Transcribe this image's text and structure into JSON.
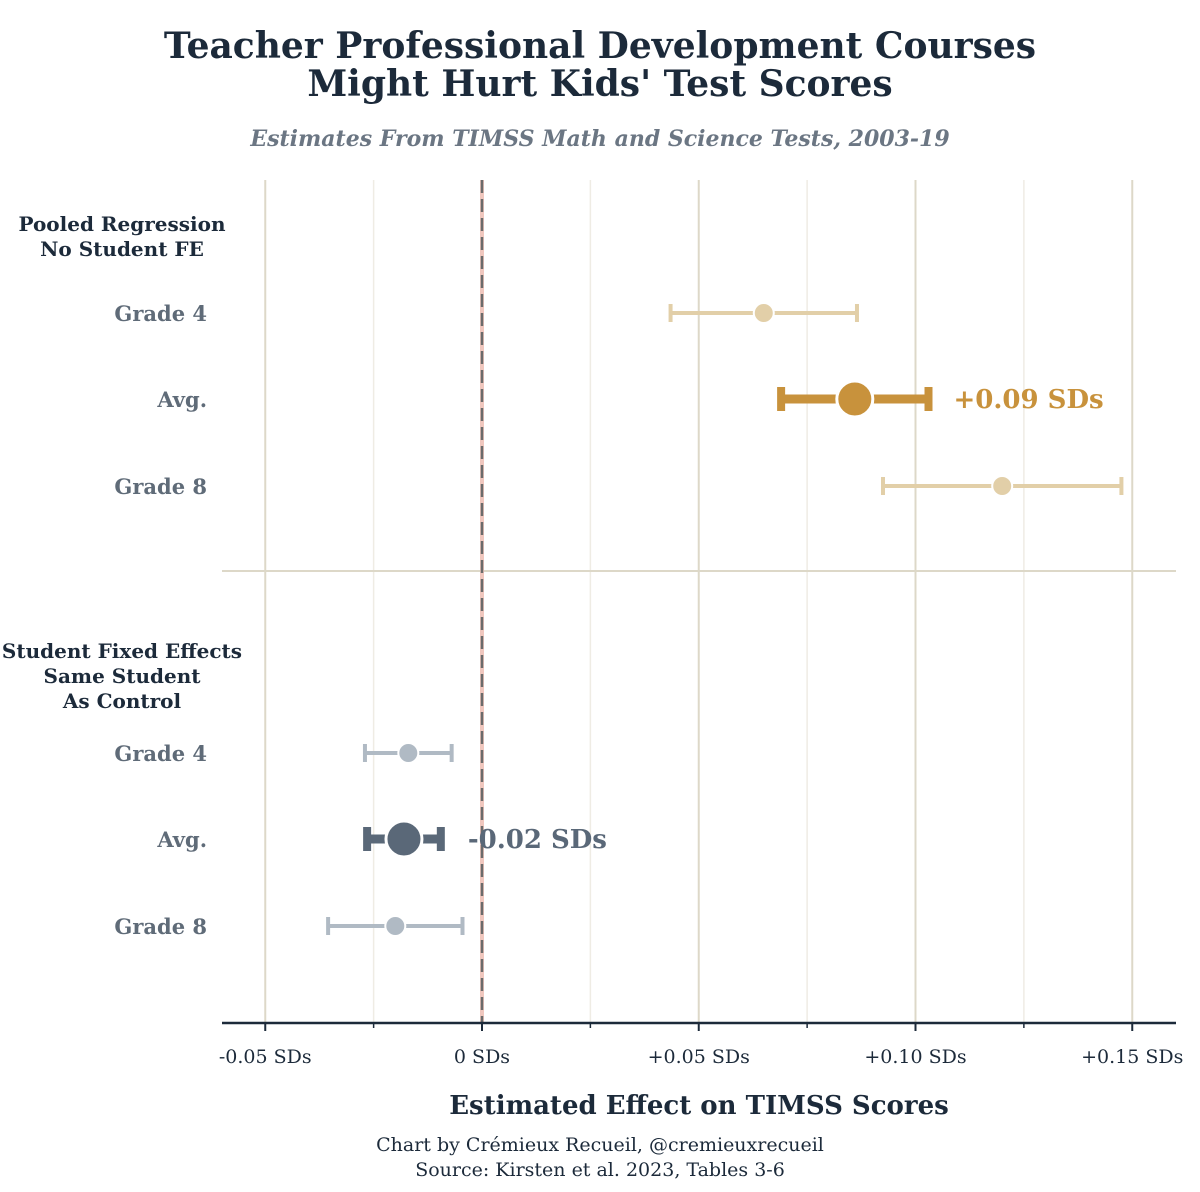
{
  "chart_data": {
    "type": "scatter",
    "title_lines": [
      "Teacher Professional Development Courses",
      "Might Hurt Kids' Test Scores"
    ],
    "subtitle": "Estimates From TIMSS Math and Science Tests, 2003-19",
    "xlabel": "Estimated Effect on TIMSS Scores",
    "xlim": [
      -0.06,
      0.16
    ],
    "x_ticks": [
      {
        "value": -0.05,
        "label": "-0.05 SDs"
      },
      {
        "value": 0.0,
        "label": "0 SDs"
      },
      {
        "value": 0.05,
        "label": "+0.05 SDs"
      },
      {
        "value": 0.1,
        "label": "+0.10 SDs"
      },
      {
        "value": 0.15,
        "label": "+0.15 SDs"
      }
    ],
    "grid": true,
    "reference_line": 0.0,
    "colors": {
      "pooled_main": "#c8923c",
      "pooled_light": "#e2cfa8",
      "fe_main": "#5a6878",
      "fe_light": "#b0bac4",
      "grid_major": "#ddd8c8",
      "grid_minor": "#efece4",
      "axis": "#1c2a3a",
      "ref_line": "#6b6b6b",
      "ref_line_faint": "#f0c7be"
    },
    "groups": [
      {
        "label_lines": [
          "Pooled Regression",
          "No Student FE"
        ],
        "color_key": "pooled",
        "rows": [
          {
            "label": "Grade 4",
            "estimate": 0.065,
            "lower": 0.0435,
            "upper": 0.0865,
            "emphasis": false
          },
          {
            "label": "Avg.",
            "estimate": 0.086,
            "lower": 0.069,
            "upper": 0.103,
            "emphasis": true,
            "annotation": "+0.09 SDs"
          },
          {
            "label": "Grade 8",
            "estimate": 0.12,
            "lower": 0.0925,
            "upper": 0.1475,
            "emphasis": false
          }
        ]
      },
      {
        "label_lines": [
          "Student Fixed Effects",
          "Same Student",
          "As Control"
        ],
        "color_key": "fe",
        "rows": [
          {
            "label": "Grade 4",
            "estimate": -0.017,
            "lower": -0.027,
            "upper": -0.007,
            "emphasis": false
          },
          {
            "label": "Avg.",
            "estimate": -0.018,
            "lower": -0.0265,
            "upper": -0.0095,
            "emphasis": true,
            "annotation": "-0.02 SDs"
          },
          {
            "label": "Grade 8",
            "estimate": -0.02,
            "lower": -0.0355,
            "upper": -0.0045,
            "emphasis": false
          }
        ]
      }
    ],
    "credits": [
      "Chart by Crémieux Recueil, @cremieuxrecueil",
      "Source: Kirsten et al. 2023, Tables 3-6"
    ]
  }
}
